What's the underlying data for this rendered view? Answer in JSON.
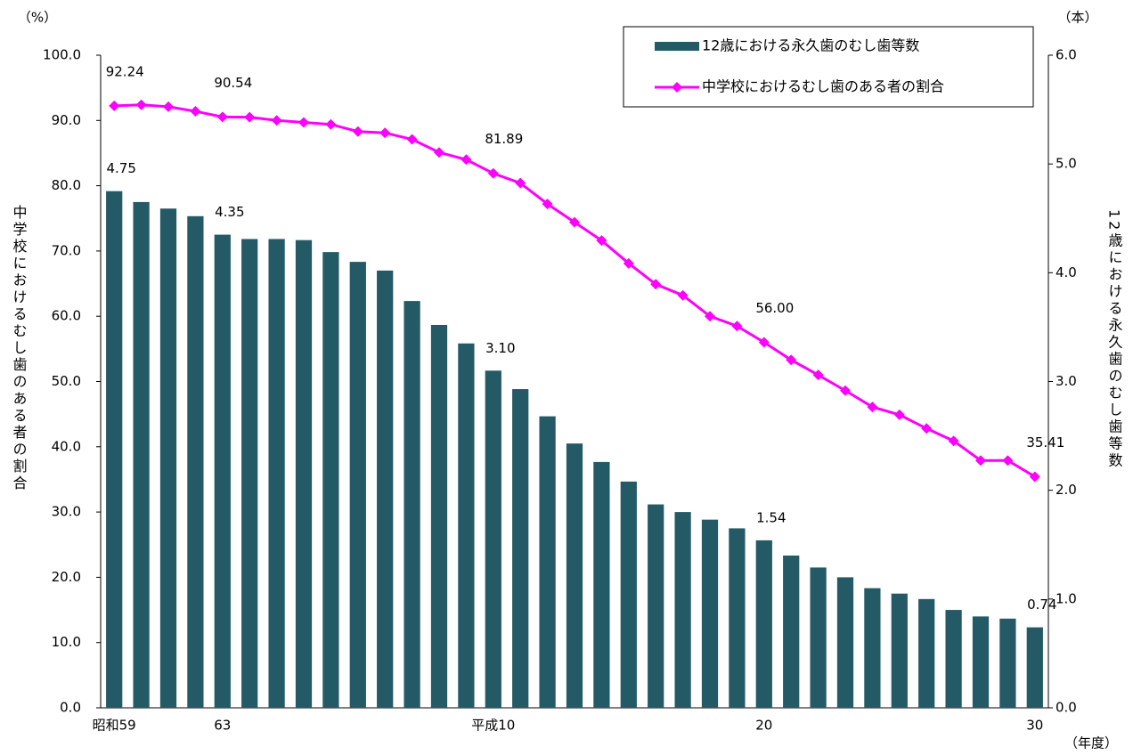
{
  "chart_data": {
    "type": "bar-line",
    "categories": [
      "昭和59",
      null,
      null,
      null,
      "63",
      null,
      null,
      null,
      null,
      null,
      null,
      null,
      null,
      null,
      "平成10",
      null,
      null,
      null,
      null,
      null,
      null,
      null,
      null,
      null,
      "20",
      null,
      null,
      null,
      null,
      null,
      null,
      null,
      null,
      null,
      "30"
    ],
    "series": [
      {
        "name": "12歳における永久歯のむし歯等数",
        "type": "bar",
        "axis": "y2",
        "color": "#245a66",
        "values": [
          4.75,
          4.65,
          4.59,
          4.52,
          4.35,
          4.31,
          4.31,
          4.3,
          4.19,
          4.1,
          4.02,
          3.74,
          3.52,
          3.35,
          3.1,
          2.93,
          2.68,
          2.43,
          2.26,
          2.08,
          1.87,
          1.8,
          1.73,
          1.65,
          1.54,
          1.4,
          1.29,
          1.2,
          1.1,
          1.05,
          1.0,
          0.9,
          0.84,
          0.82,
          0.74
        ],
        "value_labels": [
          "4.75",
          null,
          null,
          null,
          "4.35",
          null,
          null,
          null,
          null,
          null,
          null,
          null,
          null,
          null,
          "3.10",
          null,
          null,
          null,
          null,
          null,
          null,
          null,
          null,
          null,
          "1.54",
          null,
          null,
          null,
          null,
          null,
          null,
          null,
          null,
          null,
          "0.74"
        ]
      },
      {
        "name": "中学校におけるむし歯のある者の割合",
        "type": "line",
        "axis": "y",
        "color": "#ff00ff",
        "values": [
          92.24,
          92.4,
          92.1,
          91.4,
          90.54,
          90.5,
          90.0,
          89.7,
          89.4,
          88.3,
          88.1,
          87.1,
          85.1,
          84.0,
          81.89,
          80.4,
          77.2,
          74.4,
          71.6,
          68.1,
          64.9,
          63.2,
          60.0,
          58.5,
          56.0,
          53.3,
          51.0,
          48.6,
          46.1,
          44.9,
          42.8,
          40.9,
          37.9,
          37.9,
          35.41
        ],
        "value_labels": [
          "92.24",
          null,
          null,
          null,
          "90.54",
          null,
          null,
          null,
          null,
          null,
          null,
          null,
          null,
          null,
          "81.89",
          null,
          null,
          null,
          null,
          null,
          null,
          null,
          null,
          null,
          "56.00",
          null,
          null,
          null,
          null,
          null,
          null,
          null,
          null,
          null,
          "35.41"
        ]
      }
    ],
    "ylabel": "中学校におけるむし歯のある者の割合",
    "y2label": "12歳における永久歯のむし歯等数",
    "yunit": "（%）",
    "y2unit": "（本）",
    "xunit": "（年度）",
    "ylim": [
      0,
      100
    ],
    "yticks": [
      {
        "value": 0,
        "label": "0.0"
      },
      {
        "value": 10,
        "label": "10.0"
      },
      {
        "value": 20,
        "label": "20.0"
      },
      {
        "value": 30,
        "label": "30.0"
      },
      {
        "value": 40,
        "label": "40.0"
      },
      {
        "value": 50,
        "label": "50.0"
      },
      {
        "value": 60,
        "label": "60.0"
      },
      {
        "value": 70,
        "label": "70.0"
      },
      {
        "value": 80,
        "label": "80.0"
      },
      {
        "value": 90,
        "label": "90.0"
      },
      {
        "value": 100,
        "label": "100.0"
      }
    ],
    "y2lim": [
      0,
      6
    ],
    "y2ticks": [
      {
        "value": 0,
        "label": "0.0"
      },
      {
        "value": 1,
        "label": "1.0"
      },
      {
        "value": 2,
        "label": "2.0"
      },
      {
        "value": 3,
        "label": "3.0"
      },
      {
        "value": 4,
        "label": "4.0"
      },
      {
        "value": 5,
        "label": "5.0"
      },
      {
        "value": 6,
        "label": "6.0"
      }
    ],
    "grid": false,
    "legend": "top-right"
  }
}
